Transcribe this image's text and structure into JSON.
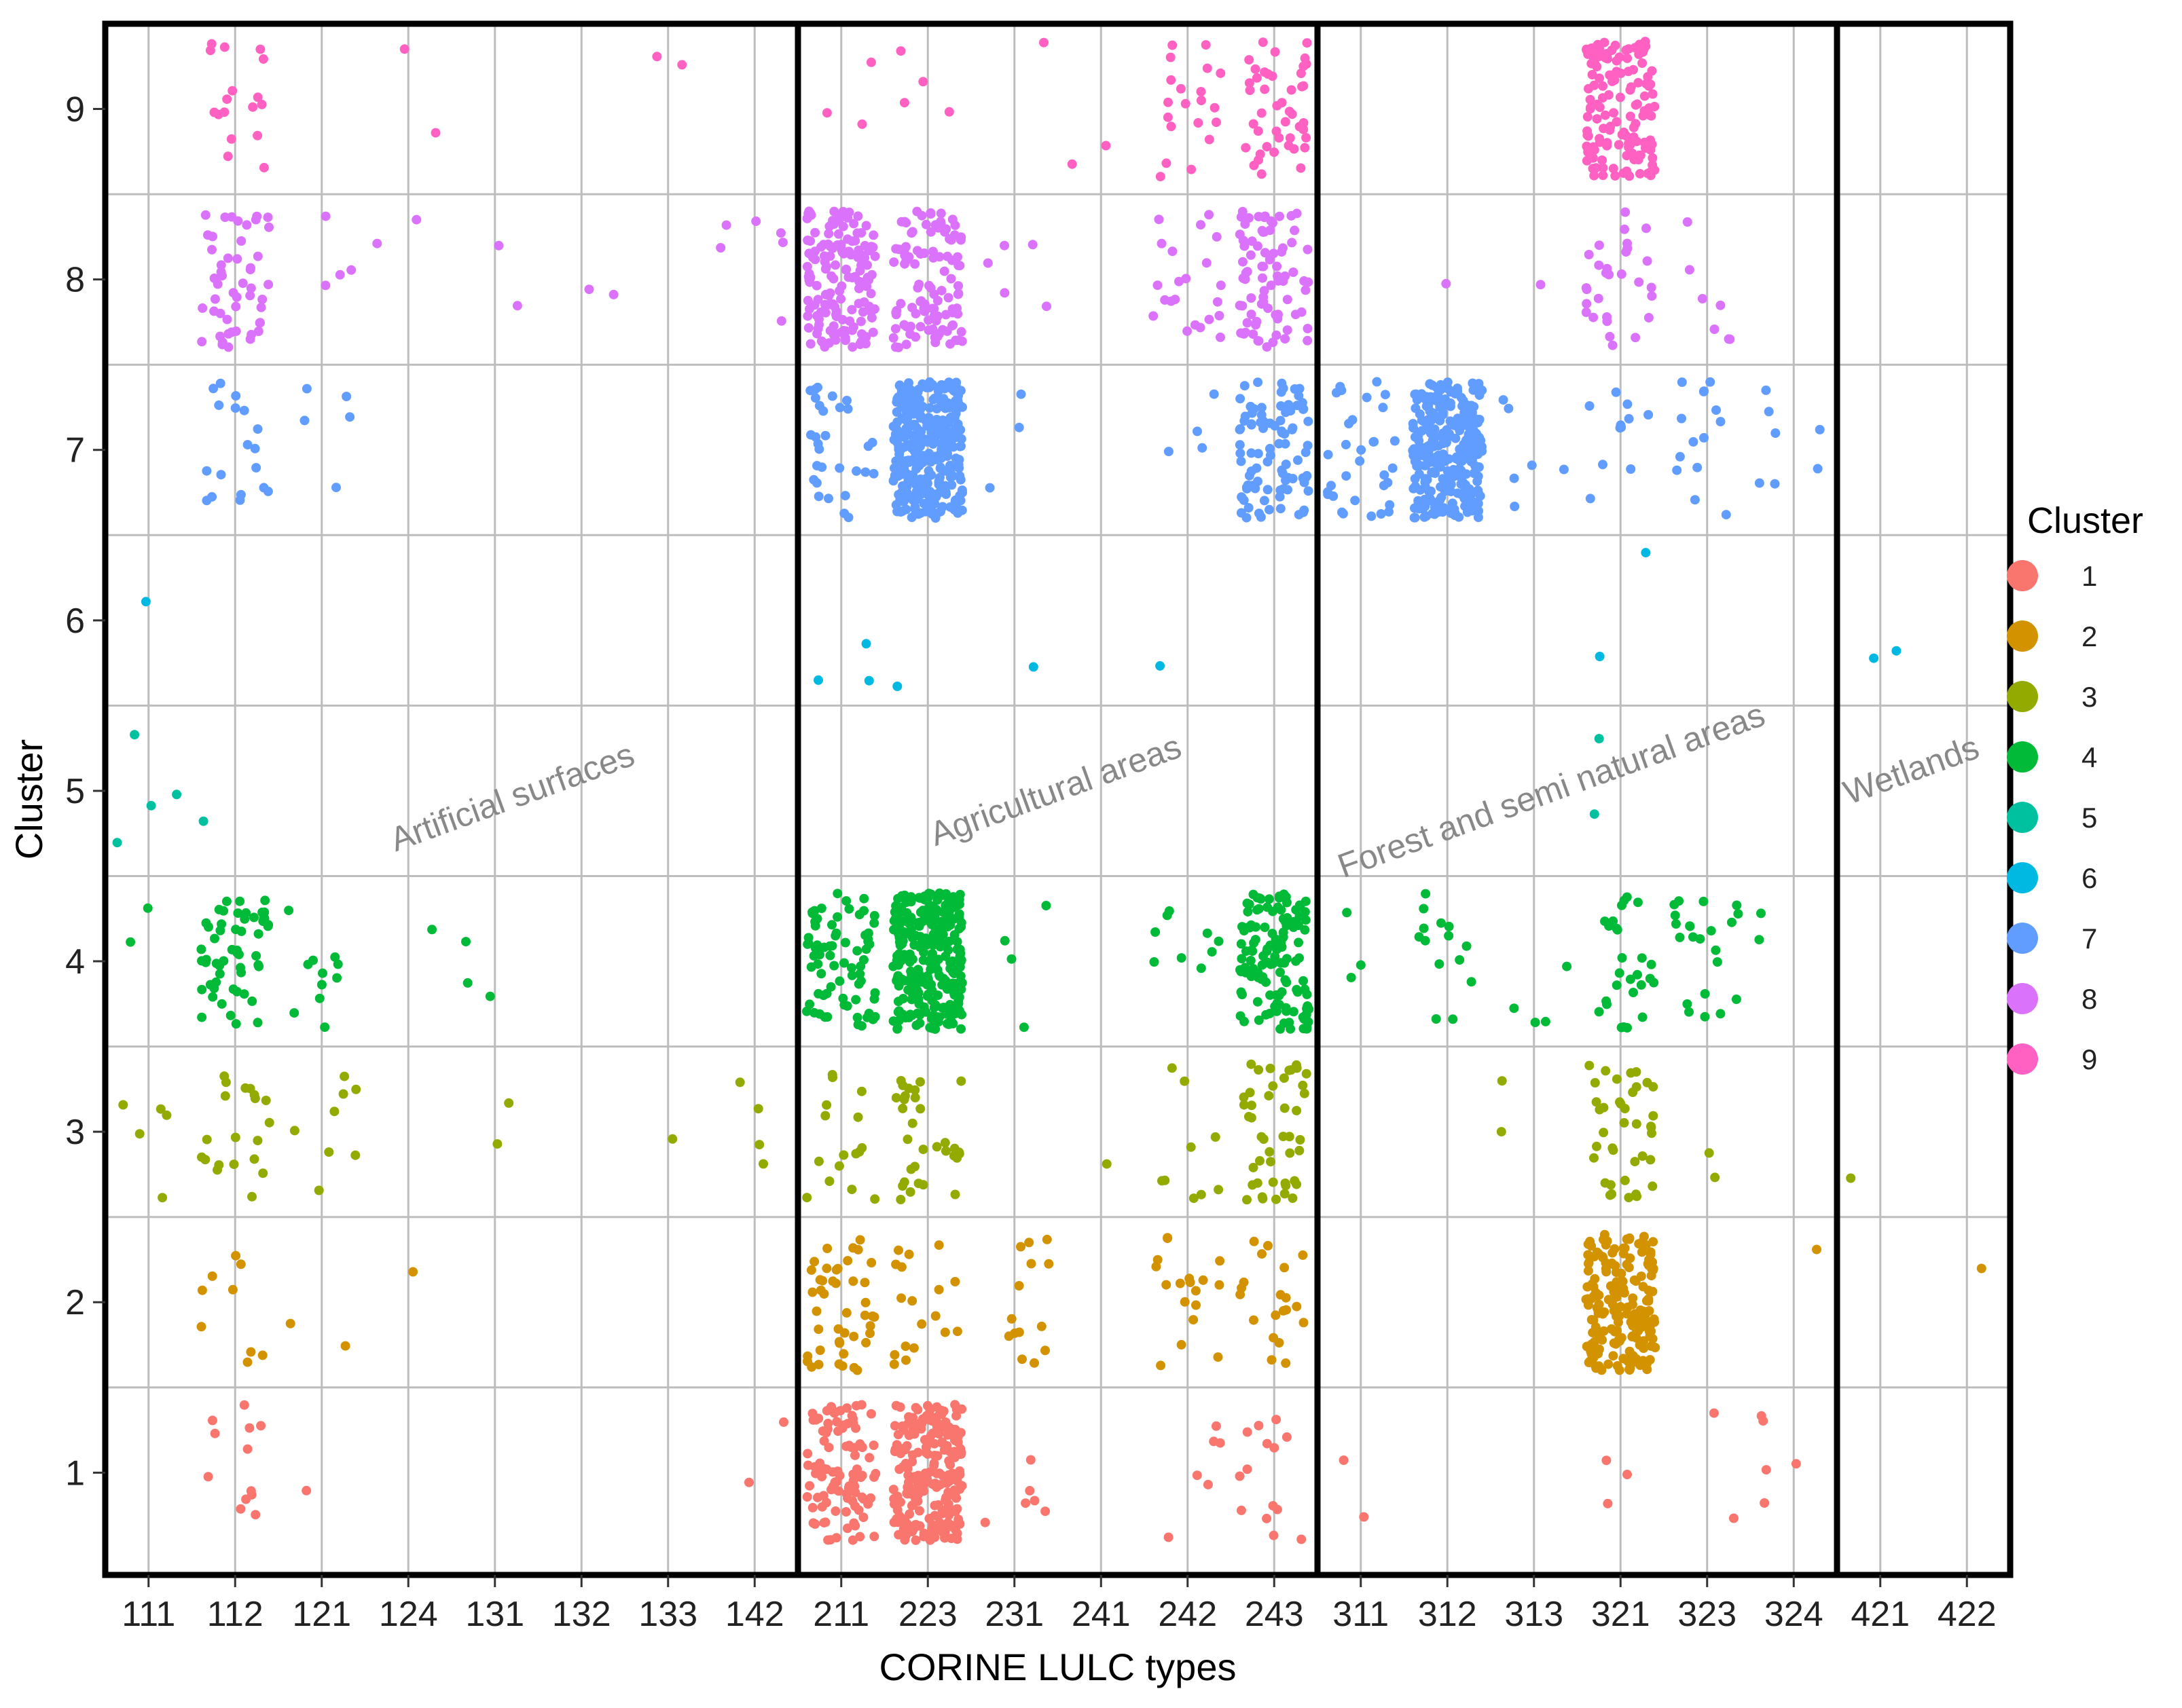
{
  "chart_data": {
    "type": "scatter",
    "subtype": "jitter-strip",
    "xlabel": "CORINE LULC types",
    "ylabel": "Cluster",
    "categories": [
      "111",
      "112",
      "121",
      "124",
      "131",
      "132",
      "133",
      "142",
      "211",
      "223",
      "231",
      "241",
      "242",
      "243",
      "311",
      "312",
      "313",
      "321",
      "323",
      "324",
      "421",
      "422"
    ],
    "y_ticks": [
      "1",
      "2",
      "3",
      "4",
      "5",
      "6",
      "7",
      "8",
      "9"
    ],
    "ylim": [
      0.4,
      9.5
    ],
    "grid": true,
    "groups": [
      {
        "label": "Artificial surfaces",
        "categories": [
          "111",
          "112",
          "121",
          "124",
          "131",
          "132",
          "133",
          "142"
        ]
      },
      {
        "label": "Agricultural areas",
        "categories": [
          "211",
          "223",
          "231",
          "241",
          "242",
          "243"
        ]
      },
      {
        "label": "Forest and semi natural areas",
        "categories": [
          "311",
          "312",
          "313",
          "321",
          "323",
          "324"
        ]
      },
      {
        "label": "Wetlands",
        "categories": [
          "421",
          "422"
        ]
      }
    ],
    "legend": {
      "title": "Cluster",
      "position": "right",
      "items": [
        {
          "label": "1",
          "color": "#F8766D"
        },
        {
          "label": "2",
          "color": "#D39200"
        },
        {
          "label": "3",
          "color": "#93AA00"
        },
        {
          "label": "4",
          "color": "#00BA38"
        },
        {
          "label": "5",
          "color": "#00C19F"
        },
        {
          "label": "6",
          "color": "#00B9E3"
        },
        {
          "label": "7",
          "color": "#619CFF"
        },
        {
          "label": "8",
          "color": "#DB72FB"
        },
        {
          "label": "9",
          "color": "#FF61C3"
        }
      ]
    },
    "point_counts": {
      "1": {
        "112": 12,
        "121": 1,
        "142": 2,
        "211": 100,
        "223": 220,
        "231": 6,
        "242": 6,
        "243": 14,
        "311": 2,
        "321": 3,
        "323": 2,
        "324": 5
      },
      "2": {
        "112": 9,
        "121": 2,
        "124": 1,
        "211": 45,
        "223": 18,
        "231": 14,
        "242": 18,
        "243": 20,
        "321": 190,
        "324": 1,
        "422": 1
      },
      "3": {
        "111": 5,
        "112": 20,
        "121": 8,
        "131": 2,
        "133": 1,
        "142": 4,
        "211": 16,
        "223": 32,
        "241": 1,
        "242": 9,
        "243": 45,
        "313": 2,
        "321": 40,
        "323": 2,
        "421": 1
      },
      "4": {
        "111": 2,
        "112": 55,
        "121": 11,
        "124": 1,
        "131": 3,
        "211": 75,
        "223": 280,
        "231": 4,
        "242": 9,
        "243": 130,
        "311": 3,
        "312": 14,
        "313": 4,
        "321": 28,
        "323": 22,
        "324": 2
      },
      "5": {
        "111": 4,
        "112": 1,
        "321": 2
      },
      "6": {
        "111": 1,
        "211": 3,
        "223": 1,
        "231": 1,
        "242": 1,
        "321": 2,
        "421": 2
      },
      "7": {
        "112": 18,
        "121": 5,
        "211": 30,
        "223": 330,
        "231": 3,
        "242": 4,
        "243": 95,
        "311": 32,
        "312": 280,
        "313": 6,
        "321": 11,
        "323": 14,
        "324": 7
      },
      "8": {
        "112": 50,
        "121": 4,
        "124": 2,
        "131": 2,
        "132": 2,
        "142": 6,
        "211": 150,
        "223": 110,
        "231": 5,
        "242": 22,
        "243": 80,
        "312": 1,
        "313": 1,
        "321": 30,
        "323": 7
      },
      "9": {
        "112": 17,
        "124": 2,
        "133": 2,
        "211": 3,
        "223": 4,
        "231": 1,
        "241": 2,
        "242": 20,
        "243": 45,
        "321": 140
      }
    }
  }
}
